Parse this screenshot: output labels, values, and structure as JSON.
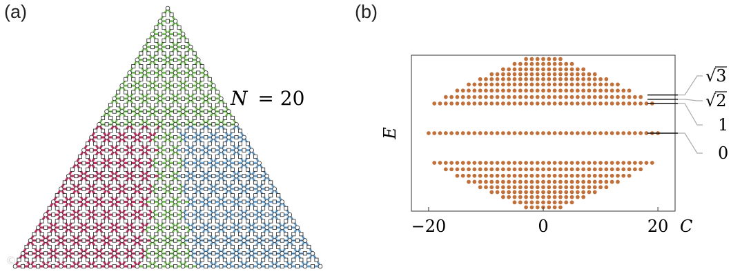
{
  "panel_a": {
    "label": "(a)",
    "annotation": "N = 20",
    "annotation_symbol": "N",
    "annotation_value": "= 20",
    "colors": {
      "green": "#8ad86b",
      "blue": "#7bb6e6",
      "magenta": "#d6336c",
      "grey": "#777777"
    }
  },
  "panel_b": {
    "label": "(b)"
  },
  "chart_data": {
    "type": "scatter",
    "title": "",
    "xlabel": "C",
    "ylabel": "E",
    "xlim": [
      -23,
      23
    ],
    "ylim": [
      -2.05,
      2.05
    ],
    "x_ticks": [
      -20,
      0,
      20
    ],
    "x_tick_labels": [
      "−20",
      "0",
      "20"
    ],
    "point_color": "#c0703a",
    "bands": [
      {
        "E": 1.95,
        "cmax": 3
      },
      {
        "E": 1.82,
        "cmax": 5
      },
      {
        "E": 1.68,
        "cmax": 7
      },
      {
        "E": 1.55,
        "cmax": 9
      },
      {
        "E": 1.42,
        "cmax": 11
      },
      {
        "E": 1.28,
        "cmax": 13
      },
      {
        "E": 1.12,
        "cmax": 15
      },
      {
        "E": 0.95,
        "cmax": 17
      },
      {
        "E": 0.78,
        "cmax": 19
      },
      {
        "E": 0.0,
        "cmax": 20
      },
      {
        "E": -0.78,
        "cmax": 19
      },
      {
        "E": -0.95,
        "cmax": 17
      },
      {
        "E": -1.12,
        "cmax": 15
      },
      {
        "E": -1.28,
        "cmax": 13
      },
      {
        "E": -1.42,
        "cmax": 11
      },
      {
        "E": -1.55,
        "cmax": 9
      },
      {
        "E": -1.68,
        "cmax": 7
      },
      {
        "E": -1.82,
        "cmax": 5
      },
      {
        "E": -1.95,
        "cmax": 3
      }
    ],
    "annotations": [
      {
        "radicand": "3",
        "E": 1.0
      },
      {
        "radicand": "2",
        "E": 0.94
      },
      {
        "text": "1",
        "E": 0.78
      },
      {
        "text": "0",
        "E": 0.0
      }
    ]
  },
  "watermark": "© …………"
}
